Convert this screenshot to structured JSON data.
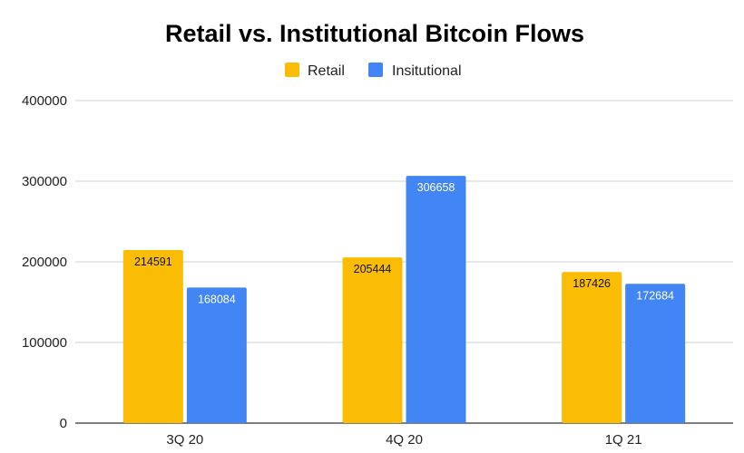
{
  "chart_data": {
    "type": "bar",
    "title": "Retail vs. Institutional Bitcoin Flows",
    "categories": [
      "3Q 20",
      "4Q 20",
      "1Q 21"
    ],
    "series": [
      {
        "name": "Retail",
        "values": [
          214591,
          205444,
          187426
        ],
        "color": "#FBBC04",
        "label_color": "#111111"
      },
      {
        "name": "Insitutional",
        "values": [
          168084,
          306658,
          172684
        ],
        "color": "#4285F4",
        "label_color": "#ffffff"
      }
    ],
    "ylim": [
      0,
      400000
    ],
    "yticks": [
      "0",
      "100000",
      "200000",
      "300000",
      "400000"
    ],
    "ytick_values": [
      0,
      100000,
      200000,
      300000,
      400000
    ],
    "grid": true,
    "legend_position": "top-center",
    "xlabel": "",
    "ylabel": ""
  }
}
